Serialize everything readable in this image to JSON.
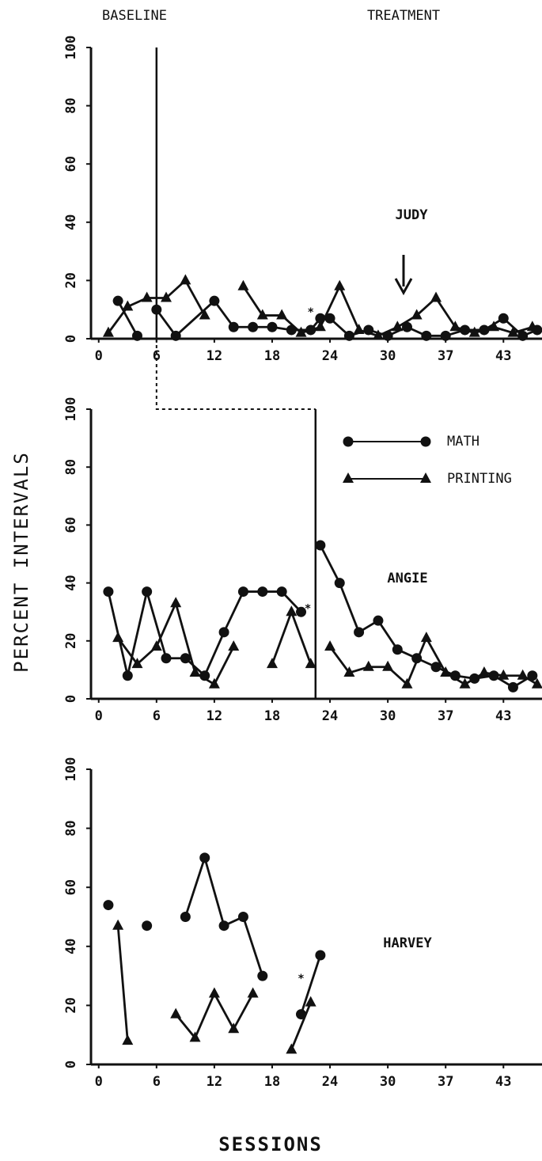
{
  "header": {
    "left": "BASELINE",
    "right": "TREATMENT"
  },
  "y_label": "PERCENT INTERVALS",
  "x_label": "SESSIONS",
  "chart_data": [
    {
      "type": "line",
      "title": "JUDY",
      "phase_change": 6,
      "xlim": [
        -0.8,
        46
      ],
      "ylim": [
        0,
        100
      ],
      "xticks": [
        0,
        6,
        12,
        18,
        24,
        30,
        {
          "value": 36,
          "label": "37"
        },
        {
          "value": 42,
          "label": "43"
        }
      ],
      "yticks": [
        0,
        20,
        40,
        60,
        80,
        100
      ],
      "annotations": [
        {
          "text": "*",
          "x": 22,
          "y": 9
        }
      ],
      "series": [
        {
          "marker": "circle",
          "color": "#111",
          "x": [
            2,
            4,
            5,
            6,
            8,
            12,
            14,
            16,
            18,
            20,
            22,
            23,
            24,
            26,
            28,
            30,
            32,
            34,
            36,
            38,
            40,
            42,
            44,
            45.5
          ],
          "values": [
            13,
            1,
            null,
            10,
            1,
            13,
            4,
            4,
            4,
            3,
            3,
            7,
            7,
            1,
            3,
            1,
            4,
            1,
            1,
            3,
            3,
            7,
            1,
            3
          ]
        },
        {
          "marker": "triangle",
          "color": "#111",
          "x": [
            1,
            3,
            5,
            7,
            9,
            11,
            13,
            15,
            17,
            19,
            21,
            23,
            25,
            27,
            29,
            31,
            33,
            35,
            37,
            39,
            41,
            43,
            45
          ],
          "values": [
            2,
            11,
            14,
            14,
            20,
            8,
            null,
            18,
            8,
            8,
            2,
            4,
            18,
            3,
            1,
            4,
            8,
            14,
            4,
            2,
            4,
            2,
            4
          ]
        }
      ]
    },
    {
      "type": "line",
      "title": "ANGIE",
      "phase_change": 22.5,
      "legend": true,
      "xlim": [
        -0.8,
        46
      ],
      "ylim": [
        0,
        100
      ],
      "xticks": [
        0,
        6,
        12,
        18,
        24,
        30,
        {
          "value": 36,
          "label": "37"
        },
        {
          "value": 42,
          "label": "43"
        }
      ],
      "yticks": [
        0,
        20,
        40,
        60,
        80,
        100
      ],
      "annotations": [
        {
          "text": "*",
          "x": 21.7,
          "y": 31
        }
      ],
      "series": [
        {
          "name": "MATH",
          "marker": "circle",
          "color": "#111",
          "x": [
            1,
            3,
            5,
            7,
            9,
            11,
            13,
            15,
            17,
            19,
            21,
            22,
            23,
            25,
            27,
            29,
            31,
            33,
            35,
            37,
            39,
            41,
            43,
            45
          ],
          "values": [
            37,
            8,
            37,
            14,
            14,
            8,
            23,
            37,
            37,
            37,
            30,
            null,
            53,
            40,
            23,
            27,
            17,
            14,
            11,
            8,
            7,
            8,
            4,
            8
          ]
        },
        {
          "name": "PRINTING",
          "marker": "triangle",
          "color": "#111",
          "x": [
            2,
            4,
            6,
            8,
            10,
            12,
            14,
            16,
            18,
            20,
            22,
            23,
            24,
            26,
            28,
            30,
            32,
            34,
            36,
            38,
            40,
            42,
            44,
            45.5
          ],
          "values": [
            21,
            12,
            18,
            33,
            9,
            5,
            18,
            null,
            12,
            30,
            12,
            null,
            18,
            9,
            11,
            11,
            5,
            21,
            9,
            5,
            9,
            8,
            8,
            5
          ]
        }
      ]
    },
    {
      "type": "line",
      "title": "HARVEY",
      "xlim": [
        -0.8,
        46
      ],
      "ylim": [
        0,
        100
      ],
      "xticks": [
        0,
        6,
        12,
        18,
        24,
        30,
        {
          "value": 36,
          "label": "37"
        },
        {
          "value": 42,
          "label": "43"
        }
      ],
      "yticks": [
        0,
        20,
        40,
        60,
        80,
        100
      ],
      "annotations": [
        {
          "text": "*",
          "x": 21,
          "y": 29
        }
      ],
      "series": [
        {
          "marker": "circle",
          "color": "#111",
          "x": [
            1,
            3,
            5,
            7,
            9,
            11,
            13,
            15,
            17,
            19,
            21,
            23
          ],
          "values": [
            54,
            null,
            47,
            null,
            50,
            70,
            47,
            50,
            30,
            null,
            17,
            37
          ]
        },
        {
          "marker": "triangle",
          "color": "#111",
          "x": [
            2,
            3,
            5,
            8,
            10,
            12,
            14,
            16,
            18,
            20,
            22
          ],
          "values": [
            47,
            8,
            null,
            17,
            9,
            24,
            12,
            24,
            null,
            5,
            21
          ]
        }
      ]
    }
  ]
}
